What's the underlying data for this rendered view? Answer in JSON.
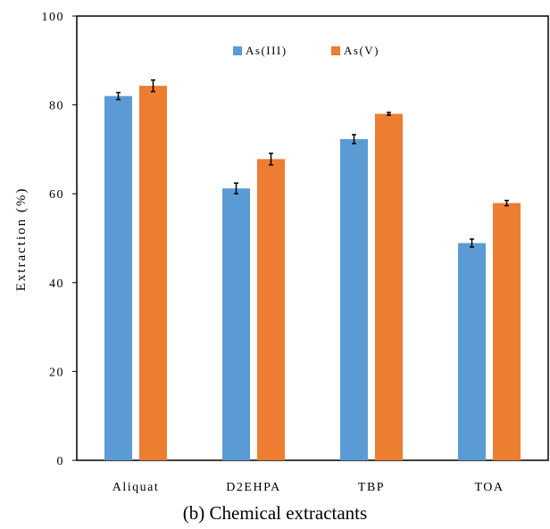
{
  "chart_data": {
    "type": "bar",
    "categories": [
      "Aliquat",
      "D2EHPA",
      "TBP",
      "TOA"
    ],
    "series": [
      {
        "name": "As(III)",
        "values": [
          82,
          61.2,
          72.3,
          48.9
        ],
        "errors": [
          0.8,
          1.2,
          1.0,
          0.9
        ],
        "color": "#5b9bd5"
      },
      {
        "name": "As(V)",
        "values": [
          84.3,
          67.8,
          78,
          57.9
        ],
        "errors": [
          1.3,
          1.3,
          0.3,
          0.6
        ],
        "color": "#ed7d31"
      }
    ],
    "title": "",
    "xlabel": "(b) Chemical extractants",
    "ylabel": "Extraction (%)",
    "ylim": [
      0,
      100
    ],
    "yticks": [
      "0",
      "20",
      "40",
      "60",
      "80",
      "100"
    ],
    "grid": false,
    "legend_position": "top-center"
  }
}
